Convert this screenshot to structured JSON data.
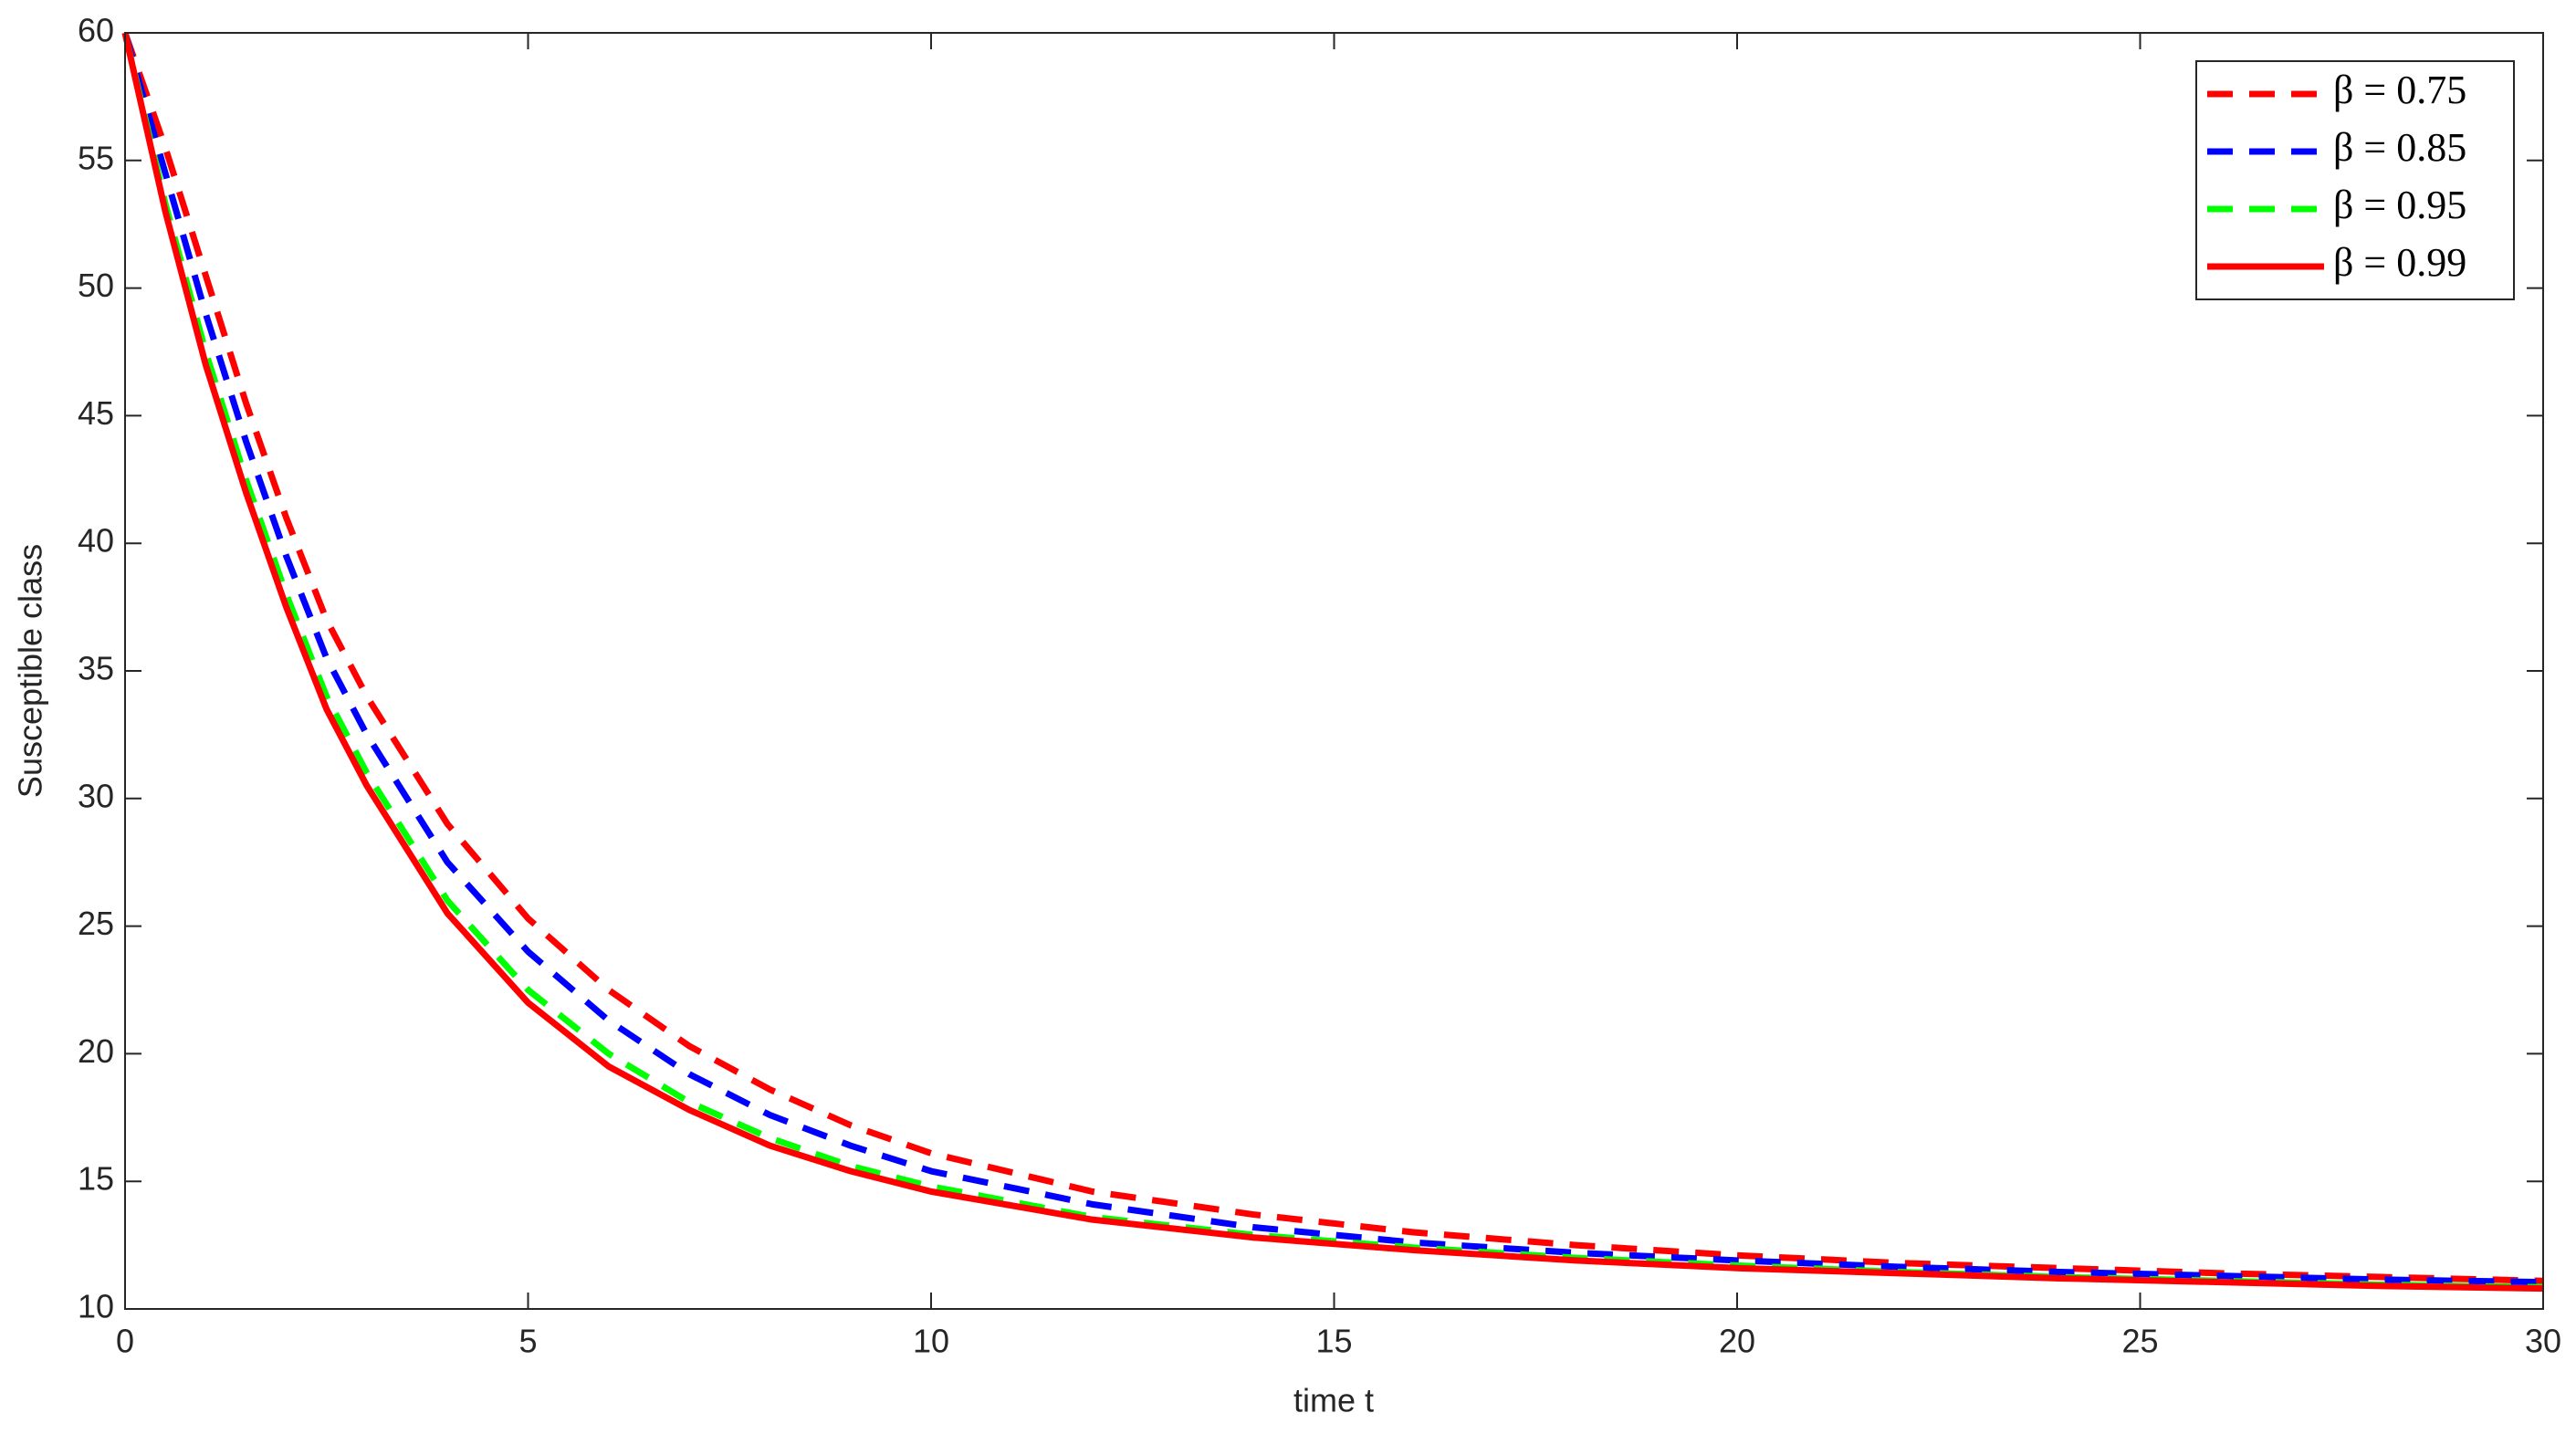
{
  "chart_data": {
    "type": "line",
    "xlabel": "time t",
    "ylabel": "Susceptible class",
    "x": [
      0,
      0.5,
      1,
      1.5,
      2,
      2.5,
      3,
      4,
      5,
      6,
      7,
      8,
      9,
      10,
      12,
      14,
      16,
      18,
      20,
      22,
      24,
      26,
      28,
      30
    ],
    "series": [
      {
        "name": "β = 0.75",
        "color": "#ff0000",
        "dash": true,
        "values": [
          60,
          55.5,
          50.5,
          45.5,
          41,
          37,
          34,
          29,
          25.3,
          22.5,
          20.3,
          18.6,
          17.2,
          16.1,
          14.6,
          13.7,
          13,
          12.5,
          12.1,
          11.8,
          11.6,
          11.4,
          11.25,
          11.1
        ]
      },
      {
        "name": "β = 0.85",
        "color": "#0000ff",
        "dash": true,
        "values": [
          60,
          54.5,
          49,
          44,
          39.5,
          35.5,
          32.5,
          27.5,
          24,
          21.3,
          19.2,
          17.6,
          16.4,
          15.4,
          14.1,
          13.2,
          12.6,
          12.2,
          11.9,
          11.65,
          11.45,
          11.3,
          11.15,
          11.05
        ]
      },
      {
        "name": "β = 0.95",
        "color": "#00ff00",
        "dash": true,
        "values": [
          60,
          53.3,
          47.5,
          42.5,
          38,
          34,
          31,
          26,
          22.5,
          20,
          18.1,
          16.7,
          15.6,
          14.8,
          13.6,
          12.9,
          12.4,
          12,
          11.7,
          11.45,
          11.25,
          11.1,
          10.95,
          10.85
        ]
      },
      {
        "name": "β = 0.99",
        "color": "#ff0000",
        "dash": false,
        "values": [
          60,
          53,
          47,
          42,
          37.5,
          33.5,
          30.5,
          25.5,
          22,
          19.5,
          17.8,
          16.4,
          15.4,
          14.6,
          13.5,
          12.8,
          12.3,
          11.9,
          11.6,
          11.4,
          11.2,
          11.05,
          10.9,
          10.8
        ]
      }
    ],
    "xlim": [
      0,
      30
    ],
    "ylim": [
      10,
      60
    ],
    "xticks": [
      0,
      5,
      10,
      15,
      20,
      25,
      30
    ],
    "yticks": [
      10,
      15,
      20,
      25,
      30,
      35,
      40,
      45,
      50,
      55,
      60
    ],
    "legend": "upper right"
  }
}
